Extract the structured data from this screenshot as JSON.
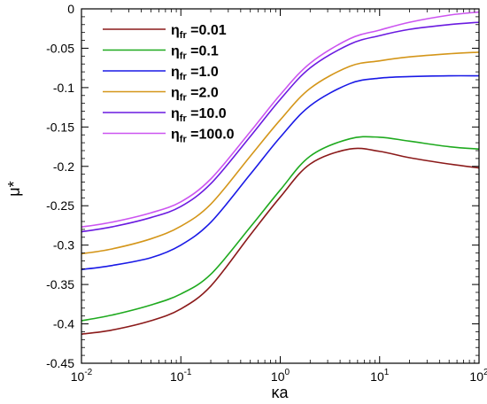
{
  "chart_data": {
    "type": "line",
    "xlabel": "κa",
    "ylabel": "μ*",
    "xscale": "log",
    "xlim": [
      0.01,
      100
    ],
    "ylim": [
      -0.45,
      0
    ],
    "grid": false,
    "legend_position": "top-left",
    "x_ticks": [
      {
        "value": 0.01,
        "base": "10",
        "exp": "-2"
      },
      {
        "value": 0.1,
        "base": "10",
        "exp": "-1"
      },
      {
        "value": 1,
        "base": "10",
        "exp": "0"
      },
      {
        "value": 10,
        "base": "10",
        "exp": "1"
      },
      {
        "value": 100,
        "base": "10",
        "exp": "2"
      }
    ],
    "y_ticks": [
      {
        "value": 0,
        "label": "0"
      },
      {
        "value": -0.05,
        "label": "-0.05"
      },
      {
        "value": -0.1,
        "label": "-0.1"
      },
      {
        "value": -0.15,
        "label": "-0.15"
      },
      {
        "value": -0.2,
        "label": "-0.2"
      },
      {
        "value": -0.25,
        "label": "-0.25"
      },
      {
        "value": -0.3,
        "label": "-0.3"
      },
      {
        "value": -0.35,
        "label": "-0.35"
      },
      {
        "value": -0.4,
        "label": "-0.4"
      },
      {
        "value": -0.45,
        "label": "-0.45"
      }
    ],
    "x": [
      0.01,
      0.02,
      0.05,
      0.1,
      0.2,
      0.5,
      1,
      2,
      5,
      10,
      20,
      50,
      100
    ],
    "series": [
      {
        "name_main": "η",
        "name_sub": "fr",
        "name_value": " =0.01",
        "color": "#8b1a1a",
        "values": [
          -0.413,
          -0.408,
          -0.396,
          -0.381,
          -0.352,
          -0.287,
          -0.239,
          -0.197,
          -0.178,
          -0.181,
          -0.189,
          -0.197,
          -0.202
        ]
      },
      {
        "name_main": "η",
        "name_sub": "fr",
        "name_value": " =0.1",
        "color": "#1faa1f",
        "values": [
          -0.396,
          -0.389,
          -0.376,
          -0.362,
          -0.337,
          -0.277,
          -0.23,
          -0.187,
          -0.165,
          -0.163,
          -0.168,
          -0.175,
          -0.178
        ]
      },
      {
        "name_main": "η",
        "name_sub": "fr",
        "name_value": " =1.0",
        "color": "#1a1ae6",
        "values": [
          -0.331,
          -0.326,
          -0.316,
          -0.3,
          -0.271,
          -0.21,
          -0.163,
          -0.123,
          -0.095,
          -0.088,
          -0.086,
          -0.085,
          -0.085
        ]
      },
      {
        "name_main": "η",
        "name_sub": "fr",
        "name_value": " =2.0",
        "color": "#d4961a",
        "values": [
          -0.311,
          -0.305,
          -0.292,
          -0.276,
          -0.248,
          -0.187,
          -0.141,
          -0.101,
          -0.073,
          -0.066,
          -0.061,
          -0.057,
          -0.055
        ]
      },
      {
        "name_main": "η",
        "name_sub": "fr",
        "name_value": " =10.0",
        "color": "#6a1ae0",
        "values": [
          -0.283,
          -0.277,
          -0.265,
          -0.251,
          -0.222,
          -0.162,
          -0.115,
          -0.075,
          -0.045,
          -0.034,
          -0.026,
          -0.02,
          -0.017
        ]
      },
      {
        "name_main": "η",
        "name_sub": "fr",
        "name_value": " =100.0",
        "color": "#cc55f0",
        "values": [
          -0.277,
          -0.271,
          -0.259,
          -0.245,
          -0.216,
          -0.156,
          -0.109,
          -0.069,
          -0.038,
          -0.027,
          -0.017,
          -0.008,
          -0.004
        ]
      }
    ]
  }
}
